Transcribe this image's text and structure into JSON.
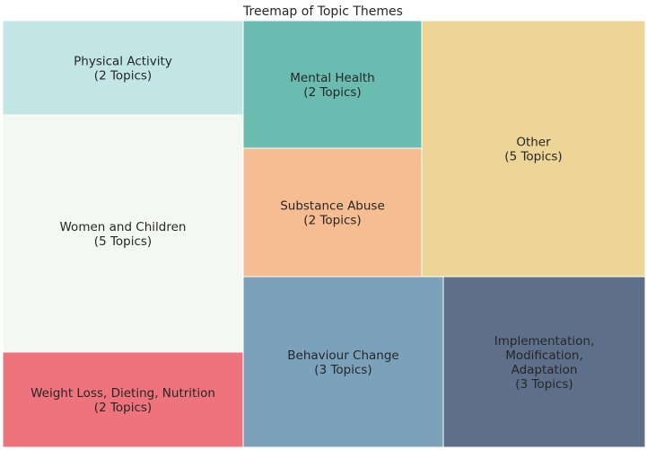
{
  "chart_data": {
    "type": "treemap",
    "title": "Treemap of Topic Themes",
    "unit_label": "Topics",
    "items": [
      {
        "name": "Women and Children",
        "value": 5,
        "color": "#f4f8f2"
      },
      {
        "name": "Physical Activity",
        "value": 2,
        "color": "#c2e5e5"
      },
      {
        "name": "Weight Loss, Dieting, Nutrition",
        "value": 2,
        "color": "#ee737c"
      },
      {
        "name": "Mental Health",
        "value": 2,
        "color": "#6abcb1"
      },
      {
        "name": "Substance Abuse",
        "value": 2,
        "color": "#f6bd93"
      },
      {
        "name": "Other",
        "value": 5,
        "color": "#edd597"
      },
      {
        "name": "Behaviour Change",
        "value": 3,
        "color": "#7ba2ba"
      },
      {
        "name": "Implementation, Modification, Adaptation",
        "value": 3,
        "color": "#5e6f8a"
      }
    ],
    "labels": [
      [
        "Women and Children",
        "(5 Topics)"
      ],
      [
        "Physical Activity",
        "(2 Topics)"
      ],
      [
        "Weight Loss, Dieting, Nutrition",
        "(2 Topics)"
      ],
      [
        "Mental Health",
        "(2 Topics)"
      ],
      [
        "Substance Abuse",
        "(2 Topics)"
      ],
      [
        "Other",
        "(5 Topics)"
      ],
      [
        "Behaviour Change",
        "(3 Topics)"
      ],
      [
        "Implementation,",
        "Modification,",
        "Adaptation",
        "(3 Topics)"
      ]
    ]
  }
}
